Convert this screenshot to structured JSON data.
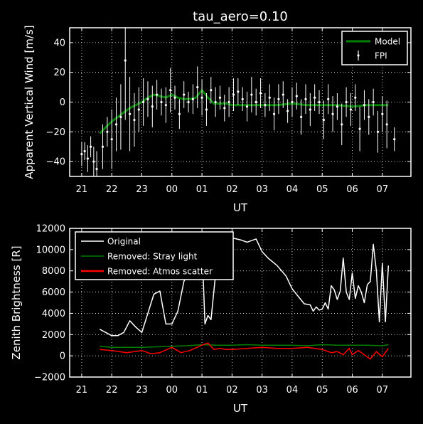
{
  "colors": {
    "background": "#000000",
    "axes": "#ffffff",
    "model": "#008000",
    "fpi": "#ffffff",
    "original": "#ffffff",
    "stray": "#008000",
    "atmos": "#ff0000"
  },
  "chart_data": [
    {
      "type": "line",
      "title": "tau_aero=0.10",
      "xlabel": "UT",
      "ylabel": "Apparent Vertical Wind [m/s]",
      "xlim": [
        20.6,
        31.95
      ],
      "ylim": [
        -50,
        50
      ],
      "xticks": [
        21,
        22,
        23,
        24,
        25,
        26,
        27,
        28,
        29,
        30,
        31
      ],
      "xtick_labels": [
        "21",
        "22",
        "23",
        "00",
        "01",
        "02",
        "03",
        "04",
        "05",
        "06",
        "07"
      ],
      "yticks": [
        -40,
        -20,
        0,
        20,
        40
      ],
      "ytick_labels": [
        "−40",
        "−20",
        "0",
        "20",
        "40"
      ],
      "grid": true,
      "legend_position": "top-right",
      "legend": [
        "Model",
        "FPI"
      ],
      "series": [
        {
          "name": "Model",
          "style": "line",
          "x": [
            21.6,
            21.8,
            22.0,
            22.2,
            22.4,
            22.6,
            22.8,
            23.0,
            23.2,
            23.4,
            23.6,
            23.8,
            24.0,
            24.2,
            24.4,
            24.6,
            24.8,
            25.0,
            25.2,
            25.4,
            25.6,
            25.8,
            26.0,
            26.5,
            27.0,
            27.5,
            28.0,
            28.5,
            29.0,
            29.5,
            30.0,
            30.5,
            31.0,
            31.2
          ],
          "values": [
            -21,
            -17,
            -13,
            -10,
            -7,
            -4,
            -2,
            0,
            3,
            5,
            4,
            3,
            5,
            3,
            2,
            2,
            3,
            8,
            3,
            -1,
            -1,
            -1,
            -2,
            -2,
            -2,
            -2,
            -1,
            -2,
            -2,
            -2,
            -3,
            -2,
            -2,
            -2
          ]
        },
        {
          "name": "FPI",
          "style": "errorbar",
          "x": [
            21.0,
            21.1,
            21.2,
            21.3,
            21.4,
            21.5,
            21.7,
            21.85,
            22.0,
            22.15,
            22.3,
            22.45,
            22.6,
            22.75,
            22.9,
            23.05,
            23.2,
            23.35,
            23.5,
            23.65,
            23.8,
            23.95,
            24.1,
            24.25,
            24.4,
            24.55,
            24.7,
            24.85,
            25.0,
            25.15,
            25.3,
            25.45,
            25.6,
            25.75,
            25.9,
            26.05,
            26.2,
            26.35,
            26.5,
            26.65,
            26.8,
            26.95,
            27.1,
            27.25,
            27.4,
            27.55,
            27.7,
            27.85,
            28.0,
            28.15,
            28.3,
            28.45,
            28.6,
            28.75,
            28.9,
            29.05,
            29.2,
            29.35,
            29.5,
            29.65,
            29.8,
            29.95,
            30.1,
            30.25,
            30.4,
            30.55,
            30.7,
            30.85,
            31.0,
            31.15,
            31.4
          ],
          "values": [
            -35,
            -33,
            -38,
            -30,
            -40,
            -45,
            -30,
            -20,
            -25,
            -15,
            -10,
            28,
            -8,
            -12,
            -5,
            0,
            2,
            -3,
            5,
            0,
            -2,
            8,
            3,
            -8,
            5,
            0,
            2,
            10,
            3,
            -5,
            8,
            0,
            3,
            -4,
            0,
            5,
            7,
            2,
            -3,
            5,
            0,
            6,
            -2,
            3,
            -8,
            2,
            5,
            -6,
            0,
            4,
            -10,
            2,
            -5,
            3,
            0,
            -12,
            2,
            -8,
            -3,
            -15,
            0,
            -5,
            3,
            -18,
            -2,
            -10,
            0,
            -20,
            -8,
            -15,
            -25
          ],
          "errors": [
            8,
            6,
            9,
            7,
            10,
            12,
            15,
            10,
            20,
            18,
            22,
            40,
            25,
            18,
            15,
            16,
            12,
            14,
            10,
            9,
            12,
            15,
            8,
            10,
            9,
            7,
            10,
            14,
            12,
            11,
            9,
            10,
            8,
            9,
            10,
            11,
            9,
            8,
            10,
            12,
            9,
            10,
            8,
            9,
            11,
            10,
            9,
            8,
            10,
            9,
            12,
            10,
            11,
            9,
            8,
            13,
            10,
            12,
            9,
            14,
            10,
            11,
            9,
            15,
            10,
            12,
            9,
            14,
            12,
            16,
            8
          ]
        }
      ]
    },
    {
      "type": "line",
      "title": "",
      "xlabel": "UT",
      "ylabel": "Zenith Brightness [R]",
      "xlim": [
        20.6,
        31.95
      ],
      "ylim": [
        -2000,
        12000
      ],
      "xticks": [
        21,
        22,
        23,
        24,
        25,
        26,
        27,
        28,
        29,
        30,
        31
      ],
      "xtick_labels": [
        "21",
        "22",
        "23",
        "00",
        "01",
        "02",
        "03",
        "04",
        "05",
        "06",
        "07"
      ],
      "yticks": [
        -2000,
        0,
        2000,
        4000,
        6000,
        8000,
        10000,
        12000
      ],
      "ytick_labels": [
        "−2000",
        "0",
        "2000",
        "4000",
        "6000",
        "8000",
        "10000",
        "12000"
      ],
      "grid": true,
      "legend_position": "top-left",
      "legend": [
        "Original",
        "Removed: Stray light",
        "Removed: Atmos scatter"
      ],
      "series": [
        {
          "name": "Original",
          "x": [
            21.6,
            21.8,
            22.0,
            22.2,
            22.4,
            22.6,
            22.8,
            23.0,
            23.2,
            23.4,
            23.6,
            23.8,
            24.0,
            24.2,
            24.4,
            24.6,
            24.8,
            25.0,
            25.1,
            25.2,
            25.3,
            25.5,
            25.7,
            26.0,
            26.3,
            26.5,
            26.8,
            27.0,
            27.2,
            27.5,
            27.8,
            28.0,
            28.2,
            28.4,
            28.6,
            28.7,
            28.8,
            28.9,
            29.0,
            29.1,
            29.2,
            29.3,
            29.4,
            29.5,
            29.6,
            29.7,
            29.8,
            29.9,
            30.0,
            30.1,
            30.2,
            30.3,
            30.4,
            30.5,
            30.6,
            30.7,
            30.8,
            30.9,
            31.0,
            31.1,
            31.2
          ],
          "values": [
            2500,
            2200,
            1900,
            1900,
            2200,
            3300,
            2700,
            2200,
            4000,
            5800,
            6100,
            3000,
            3000,
            4200,
            7000,
            8200,
            9000,
            10500,
            3000,
            3800,
            3400,
            9000,
            10800,
            11100,
            10900,
            10700,
            11000,
            9800,
            9200,
            8500,
            7500,
            6300,
            5600,
            4900,
            4800,
            4200,
            4600,
            4300,
            4400,
            5000,
            4400,
            6600,
            6200,
            5300,
            6100,
            9200,
            6000,
            5300,
            7800,
            5400,
            6600,
            6000,
            5000,
            6700,
            7000,
            10500,
            8000,
            3200,
            8700,
            3200,
            8500
          ]
        },
        {
          "name": "Removed: Stray light",
          "x": [
            21.6,
            22.0,
            22.5,
            23.0,
            23.5,
            24.0,
            24.5,
            25.0,
            25.5,
            26.0,
            26.5,
            27.0,
            27.5,
            28.0,
            28.5,
            29.0,
            29.5,
            30.0,
            30.5,
            31.0,
            31.2
          ],
          "values": [
            900,
            800,
            800,
            800,
            850,
            900,
            950,
            1050,
            1000,
            1000,
            1050,
            1000,
            1000,
            1000,
            950,
            1050,
            1000,
            1000,
            1000,
            950,
            1050
          ]
        },
        {
          "name": "Removed: Atmos scatter",
          "x": [
            21.6,
            22.0,
            22.5,
            23.0,
            23.3,
            23.6,
            24.0,
            24.3,
            24.6,
            25.0,
            25.2,
            25.4,
            25.6,
            25.8,
            26.0,
            26.5,
            27.0,
            27.5,
            28.0,
            28.5,
            29.0,
            29.3,
            29.5,
            29.7,
            29.9,
            30.0,
            30.2,
            30.4,
            30.6,
            30.8,
            31.0,
            31.2
          ],
          "values": [
            600,
            500,
            300,
            500,
            200,
            300,
            800,
            300,
            500,
            1000,
            1200,
            600,
            700,
            600,
            600,
            700,
            800,
            700,
            700,
            800,
            600,
            300,
            400,
            100,
            700,
            100,
            500,
            100,
            -300,
            400,
            -100,
            700
          ]
        }
      ]
    }
  ]
}
